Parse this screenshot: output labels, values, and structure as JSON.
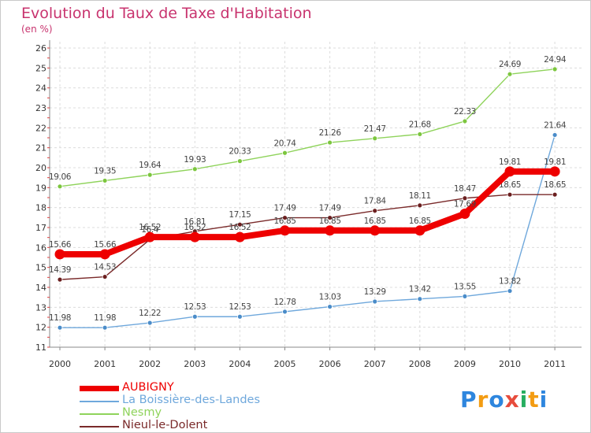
{
  "chart_data": {
    "type": "line",
    "title": "Evolution du Taux de Taxe d'Habitation",
    "unit_label": "(en %)",
    "ylim": [
      11,
      26
    ],
    "grid": true,
    "legend_position": "bottom-left",
    "categories": [
      "2000",
      "2001",
      "2002",
      "2003",
      "2004",
      "2005",
      "2006",
      "2007",
      "2008",
      "2009",
      "2010",
      "2011"
    ],
    "y_ticks": [
      "11",
      "12",
      "13",
      "14",
      "15",
      "16",
      "17",
      "18",
      "19",
      "20",
      "21",
      "22",
      "23",
      "24",
      "25",
      "26"
    ],
    "series": [
      {
        "name": "Nesmy",
        "color": "#8fd35b",
        "marker": "#7cc63e",
        "label_color": "#444444",
        "values": [
          19.06,
          19.35,
          19.64,
          19.93,
          20.33,
          20.74,
          21.26,
          21.47,
          21.68,
          22.33,
          24.69,
          24.94
        ],
        "labels": [
          "19.06",
          "19.35",
          "19.64",
          "19.93",
          "20.33",
          "20.74",
          "21.26",
          "21.47",
          "21.68",
          "22.33",
          "24.69",
          "24.94"
        ]
      },
      {
        "name": "La Boissière-des-Landes",
        "color": "#6fa8dc",
        "marker": "#4a8cc9",
        "label_color": "#444444",
        "values": [
          11.98,
          11.98,
          12.22,
          12.53,
          12.53,
          12.78,
          13.03,
          13.29,
          13.42,
          13.55,
          13.82,
          21.64
        ],
        "labels": [
          "11.98",
          "11.98",
          "12.22",
          "12.53",
          "12.53",
          "12.78",
          "13.03",
          "13.29",
          "13.42",
          "13.55",
          "13.82",
          "21.64"
        ]
      },
      {
        "name": "Nieul-le-Dolent",
        "color": "#7a2a2a",
        "marker": "#6b1f1f",
        "label_color": "#444444",
        "values": [
          14.39,
          14.53,
          16.4,
          16.81,
          17.15,
          17.49,
          17.49,
          17.84,
          18.11,
          18.47,
          18.65,
          18.65
        ],
        "labels": [
          "14.39",
          "14.53",
          "16.4",
          "16.81",
          "17.15",
          "17.49",
          "17.49",
          "17.84",
          "18.11",
          "18.47",
          "18.65",
          "18.65"
        ]
      },
      {
        "name": "AUBIGNY",
        "color": "#ee0000",
        "marker": "#ee0000",
        "label_color": "#444444",
        "values": [
          15.66,
          15.66,
          16.52,
          16.52,
          16.52,
          16.85,
          16.85,
          16.85,
          16.85,
          17.69,
          19.81,
          19.81
        ],
        "labels": [
          "15.66",
          "15.66",
          "16.52",
          "16.52",
          "16.52",
          "16.85",
          "16.85",
          "16.85",
          "16.85",
          "17.69",
          "19.81",
          "19.81"
        ]
      }
    ]
  },
  "legend": [
    {
      "name": "AUBIGNY",
      "color": "#ee0000",
      "thick": true
    },
    {
      "name": "La Boissière-des-Landes",
      "color": "#6fa8dc",
      "thick": false
    },
    {
      "name": "Nesmy",
      "color": "#8fd35b",
      "thick": false
    },
    {
      "name": "Nieul-le-Dolent",
      "color": "#7a2a2a",
      "thick": false
    }
  ],
  "logo": {
    "text": "Proxiti",
    "colors": [
      "#2e86de",
      "#f39c12",
      "#2e86de",
      "#e74c3c",
      "#27ae60",
      "#f39c12",
      "#2e86de"
    ]
  }
}
